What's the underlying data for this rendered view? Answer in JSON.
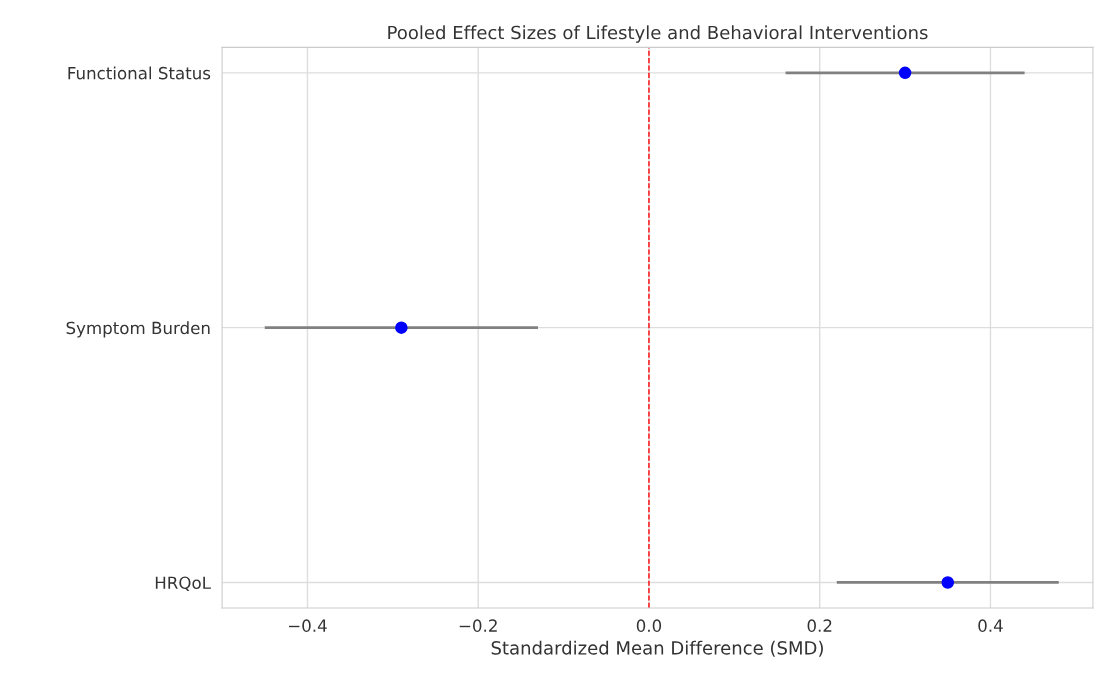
{
  "chart_data": {
    "type": "scatter",
    "orientation": "horizontal",
    "title": "Pooled Effect Sizes of Lifestyle and Behavioral Interventions",
    "xlabel": "Standardized Mean Difference (SMD)",
    "categories": [
      "Functional Status",
      "Symptom Burden",
      "HRQoL"
    ],
    "values": [
      0.3,
      -0.29,
      0.35
    ],
    "errors": [
      [
        0.16,
        0.44
      ],
      [
        -0.45,
        -0.13
      ],
      [
        0.22,
        0.48
      ]
    ],
    "color": "#0000ff",
    "xlim": [
      -0.5,
      0.52
    ],
    "xticks": [
      {
        "value": -0.4,
        "label": "−0.4"
      },
      {
        "value": -0.2,
        "label": "−0.2"
      },
      {
        "value": 0.0,
        "label": "0.0"
      },
      {
        "value": 0.2,
        "label": "0.2"
      },
      {
        "value": 0.4,
        "label": "0.4"
      }
    ],
    "ref_lines": [
      {
        "axis": "x",
        "value": 0,
        "color": "#ff0000",
        "line_style": "dashed"
      }
    ],
    "grid": true,
    "marker": "circle"
  }
}
